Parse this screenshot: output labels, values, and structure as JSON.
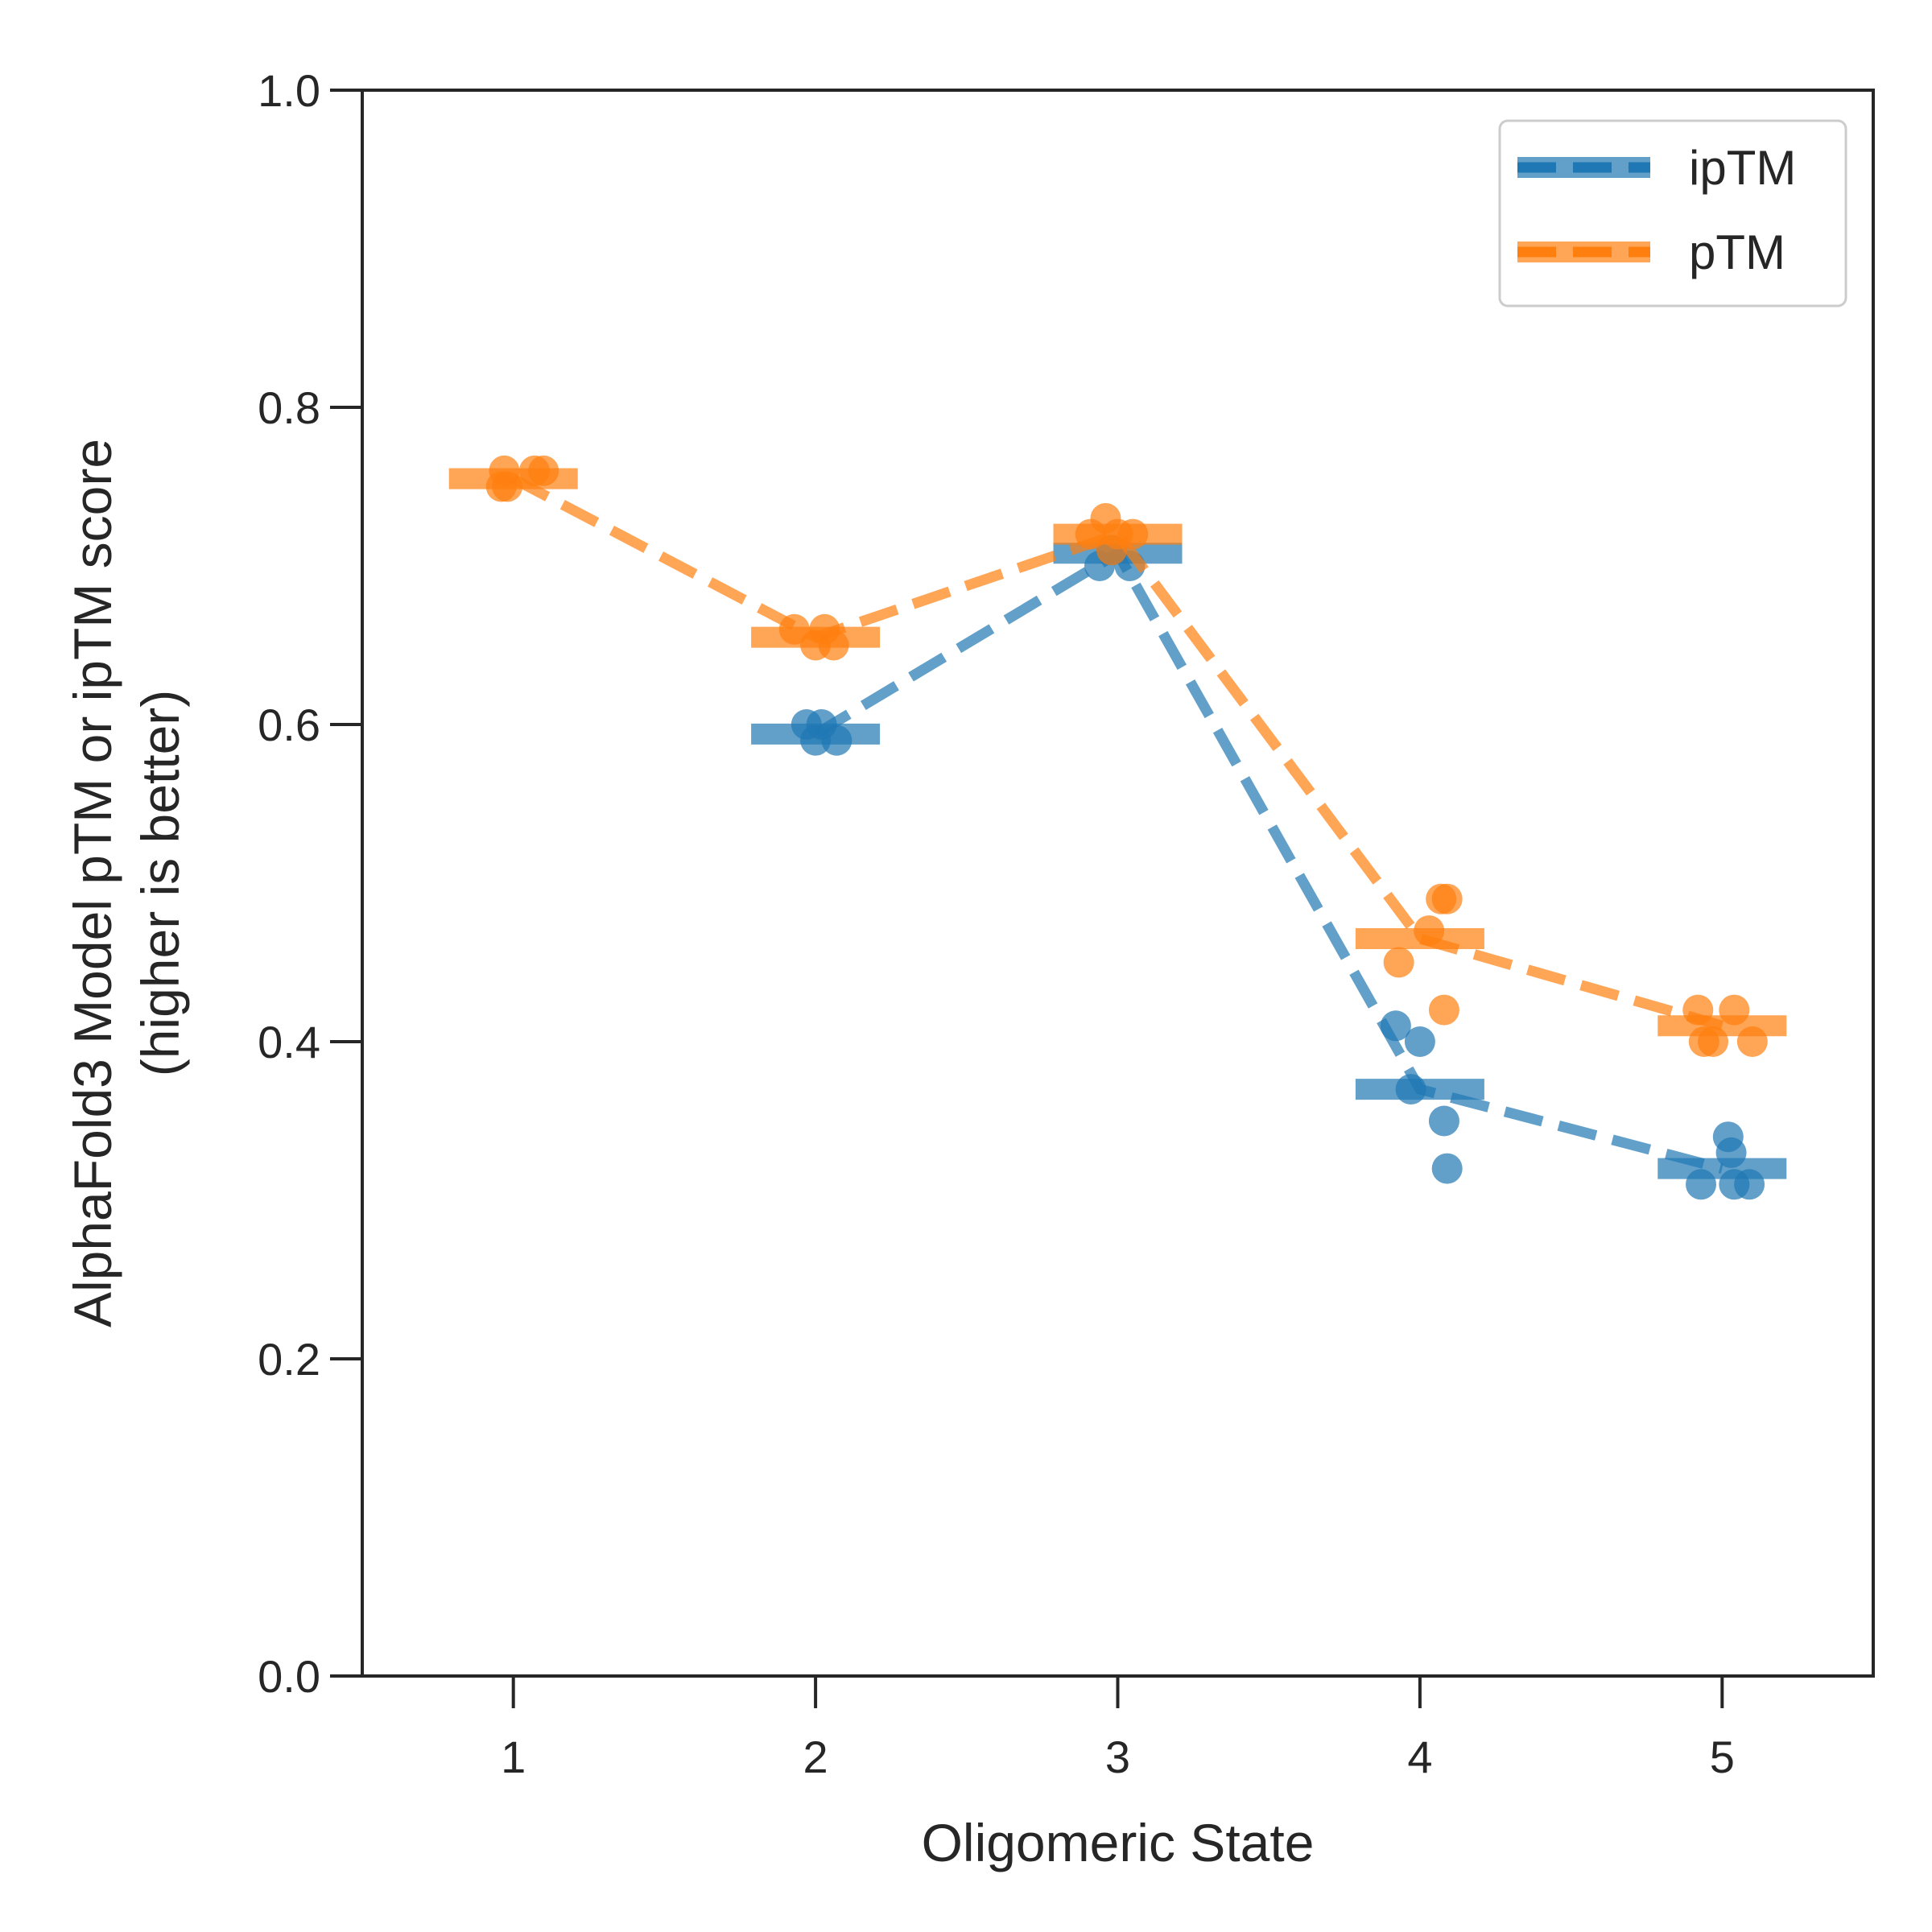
{
  "chart_data": {
    "type": "scatter",
    "xlabel": "Oligomeric State",
    "ylabel_lines": [
      "AlphaFold3 Model pTM or ipTM score",
      "(higher is better)"
    ],
    "xlim": [
      0.5,
      5.5
    ],
    "ylim": [
      0.0,
      1.0
    ],
    "xticks": [
      "1",
      "2",
      "3",
      "4",
      "5"
    ],
    "yticks": [
      "0.0",
      "0.2",
      "0.4",
      "0.6",
      "0.8",
      "1.0"
    ],
    "grid": false,
    "legend": {
      "placement": "top-right",
      "entries": [
        "ipTM",
        "pTM"
      ]
    },
    "series": [
      {
        "name": "ipTM",
        "color": "#1f77b4",
        "mean_x": [
          2,
          3,
          4,
          5
        ],
        "mean_y": [
          0.594,
          0.708,
          0.37,
          0.32
        ],
        "points": [
          [
            1.97,
            0.6
          ],
          [
            2.0,
            0.59
          ],
          [
            2.02,
            0.6
          ],
          [
            2.07,
            0.59
          ],
          [
            2.94,
            0.7
          ],
          [
            2.98,
            0.71
          ],
          [
            3.04,
            0.7
          ],
          [
            3.92,
            0.41
          ],
          [
            3.97,
            0.37
          ],
          [
            4.0,
            0.4
          ],
          [
            4.08,
            0.35
          ],
          [
            4.09,
            0.32
          ],
          [
            4.93,
            0.31
          ],
          [
            5.02,
            0.34
          ],
          [
            5.03,
            0.33
          ],
          [
            5.04,
            0.31
          ],
          [
            5.09,
            0.31
          ]
        ]
      },
      {
        "name": "pTM",
        "color": "#ff7f0e",
        "mean_x": [
          1,
          2,
          3,
          4,
          5
        ],
        "mean_y": [
          0.755,
          0.655,
          0.72,
          0.465,
          0.41
        ],
        "points": [
          [
            0.96,
            0.75
          ],
          [
            0.97,
            0.76
          ],
          [
            0.98,
            0.75
          ],
          [
            1.07,
            0.76
          ],
          [
            1.1,
            0.76
          ],
          [
            1.93,
            0.66
          ],
          [
            2.0,
            0.65
          ],
          [
            2.03,
            0.66
          ],
          [
            2.06,
            0.65
          ],
          [
            2.91,
            0.72
          ],
          [
            2.96,
            0.73
          ],
          [
            2.98,
            0.71
          ],
          [
            3.0,
            0.72
          ],
          [
            3.05,
            0.72
          ],
          [
            3.93,
            0.45
          ],
          [
            4.03,
            0.47
          ],
          [
            4.07,
            0.49
          ],
          [
            4.08,
            0.42
          ],
          [
            4.09,
            0.49
          ],
          [
            4.92,
            0.42
          ],
          [
            4.94,
            0.4
          ],
          [
            4.97,
            0.4
          ],
          [
            5.04,
            0.42
          ],
          [
            5.1,
            0.4
          ]
        ]
      }
    ]
  }
}
